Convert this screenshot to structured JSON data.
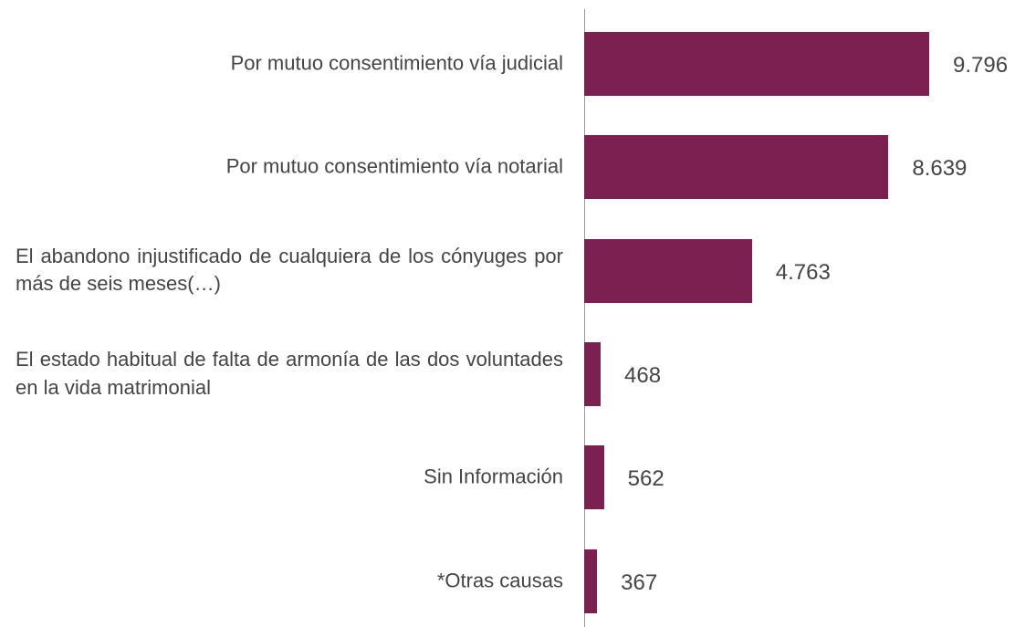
{
  "chart_data": {
    "type": "bar",
    "orientation": "horizontal",
    "categories": [
      "Por mutuo consentimiento vía judicial",
      "Por mutuo consentimiento vía notarial",
      "El abandono injustificado de cualquiera de los cónyuges por más de seis meses(…)",
      "El estado habitual de falta de armonía de las dos voluntades en la vida matrimonial",
      "Sin Información",
      "*Otras causas"
    ],
    "values": [
      9796,
      8639,
      4763,
      468,
      562,
      367
    ],
    "value_labels": [
      "9.796",
      "8.639",
      "4.763",
      "468",
      "562",
      "367"
    ],
    "color": "#7b2050"
  }
}
